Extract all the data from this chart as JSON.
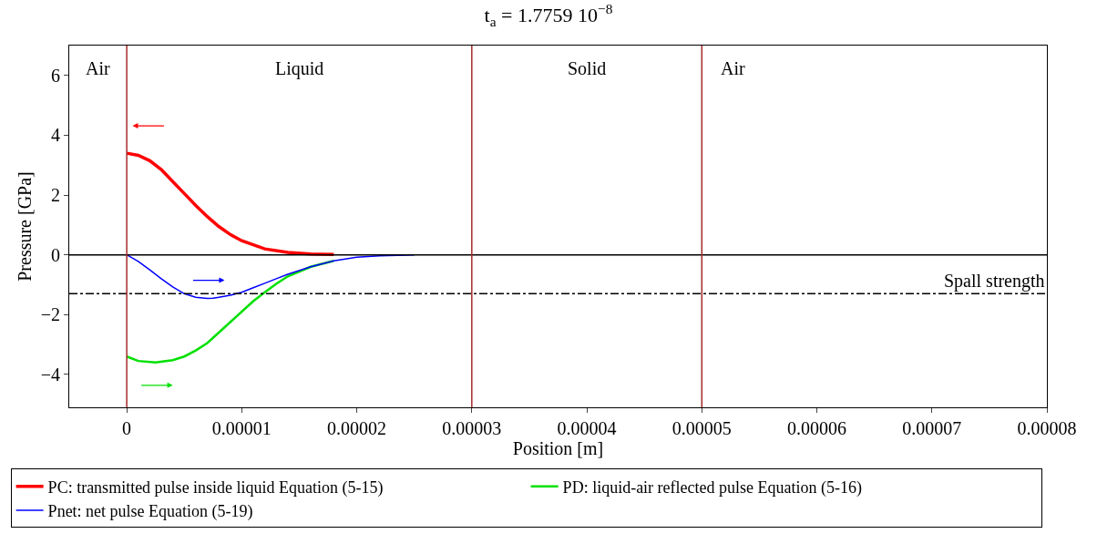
{
  "chart_data": {
    "type": "line",
    "title": "t$_{a}$ = 1.7759 10$^{−8}$",
    "xlabel": "Position [m]",
    "ylabel": "Pressure [GPa]",
    "xlim": [
      -5e-06,
      8e-05
    ],
    "ylim": [
      -5.1,
      7
    ],
    "xticks": [
      0,
      {
        "value": 1e-05,
        "label": "0.00001"
      },
      {
        "value": 2e-05,
        "label": "0.00002"
      },
      {
        "value": 3e-05,
        "label": "0.00003"
      },
      {
        "value": 4e-05,
        "label": "0.00004"
      },
      {
        "value": 5e-05,
        "label": "0.00005"
      },
      {
        "value": 6e-05,
        "label": "0.00006"
      },
      {
        "value": 7e-05,
        "label": "0.00007"
      },
      {
        "value": 8e-05,
        "label": "0.00008"
      }
    ],
    "yticks": [
      {
        "value": -4,
        "label": "−4"
      },
      {
        "value": -2,
        "label": "−2"
      },
      0,
      2,
      4,
      6
    ],
    "legend": "bottom",
    "line_style": "solid",
    "marker": "none",
    "series": [
      {
        "name": "PC: transmitted pulse inside liquid Equation (5-15)",
        "color": "#ff0000",
        "x": [
          0,
          1e-06,
          2e-06,
          3e-06,
          4e-06,
          5e-06,
          6e-06,
          7e-06,
          8e-06,
          9e-06,
          1e-05,
          1.2e-05,
          1.4e-05,
          1.6e-05,
          1.8e-05
        ],
        "values": [
          3.4,
          3.33,
          3.15,
          2.85,
          2.45,
          2.05,
          1.65,
          1.28,
          0.95,
          0.68,
          0.47,
          0.2,
          0.08,
          0.03,
          0.01
        ]
      },
      {
        "name": "PD: liquid-air reflected pulse Equation (5-16)",
        "color": "#00e000",
        "x": [
          0,
          1e-06,
          2.5e-06,
          4e-06,
          5e-06,
          6e-06,
          7e-06,
          8e-06,
          9e-06,
          1e-05,
          1.1e-05,
          1.2e-05,
          1.3e-05,
          1.4e-05,
          1.6e-05,
          1.8e-05
        ],
        "values": [
          -3.4,
          -3.55,
          -3.6,
          -3.52,
          -3.4,
          -3.2,
          -2.95,
          -2.6,
          -2.25,
          -1.9,
          -1.55,
          -1.25,
          -0.97,
          -0.72,
          -0.4,
          -0.2
        ]
      },
      {
        "name": "Pnet: net pulse Equation (5-19)",
        "color": "#0000ff",
        "x": [
          0,
          1e-06,
          2e-06,
          3e-06,
          4e-06,
          5e-06,
          6e-06,
          7e-06,
          7.5e-06,
          8e-06,
          9e-06,
          1e-05,
          1.1e-05,
          1.2e-05,
          1.3e-05,
          1.4e-05,
          1.6e-05,
          1.8e-05,
          2e-05,
          2.2e-05,
          2.5e-05
        ],
        "values": [
          0,
          -0.22,
          -0.5,
          -0.8,
          -1.07,
          -1.3,
          -1.42,
          -1.46,
          -1.45,
          -1.42,
          -1.35,
          -1.25,
          -1.1,
          -0.95,
          -0.8,
          -0.65,
          -0.4,
          -0.2,
          -0.08,
          -0.03,
          0
        ]
      }
    ],
    "ref_lines": [
      {
        "axis": "y",
        "value": 0,
        "color": "#000000",
        "line_style": "solid"
      },
      {
        "axis": "y",
        "value": -1.3,
        "label": "Spall strength",
        "color": "#000000",
        "line_style": "dashdot"
      },
      {
        "axis": "x",
        "value": 0,
        "color": "#a52a2a",
        "line_style": "solid"
      },
      {
        "axis": "x",
        "value": 3e-05,
        "color": "#a52a2a",
        "line_style": "solid"
      },
      {
        "axis": "x",
        "value": 5e-05,
        "color": "#a52a2a",
        "line_style": "solid"
      }
    ],
    "annotations": [
      "Air",
      "Liquid",
      "Solid",
      "Air"
    ]
  }
}
